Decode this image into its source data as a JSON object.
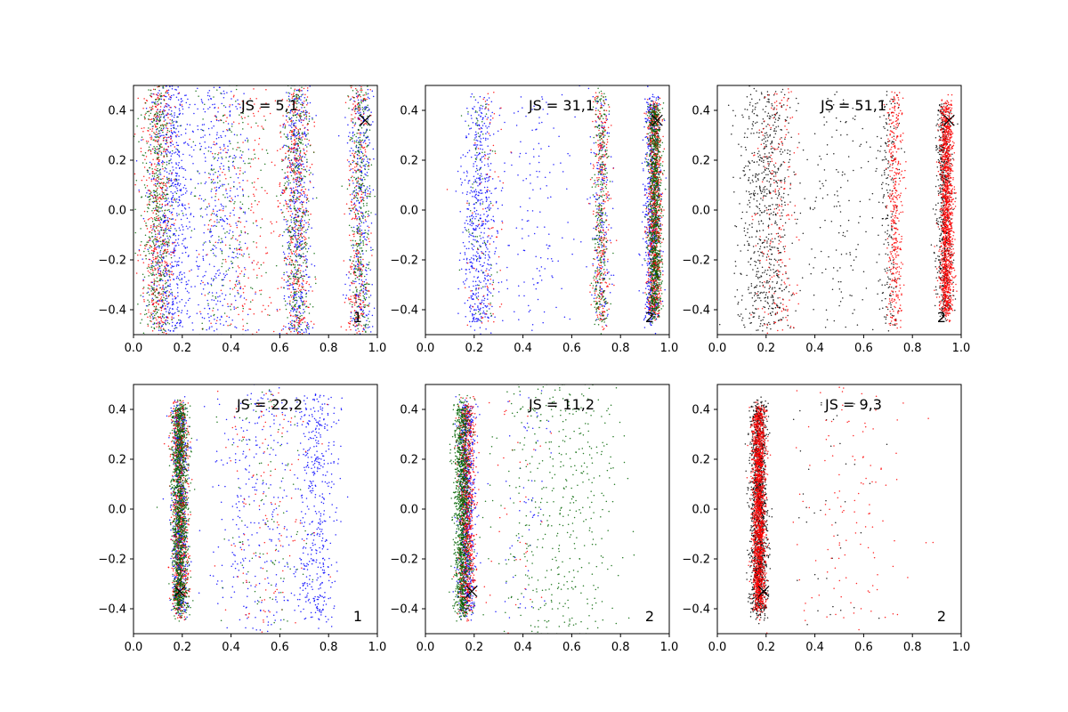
{
  "chart_data": [
    {
      "type": "scatter",
      "title": "JS = 5,1",
      "corner_label": "1",
      "xlim": [
        0,
        1
      ],
      "ylim": [
        -0.5,
        0.5
      ],
      "xticks": [
        "0.0",
        "0.2",
        "0.4",
        "0.6",
        "0.8",
        "1.0"
      ],
      "yticks": [
        "-0.4",
        "-0.2",
        "0.0",
        "0.2",
        "0.4"
      ],
      "marker": {
        "x": 0.95,
        "y": 0.36
      },
      "series": [
        {
          "color": "#0000ff",
          "clusters": [
            {
              "cx": 0.15,
              "cy": 0.0,
              "sx": 0.08,
              "sy": 0.26,
              "n": 700
            },
            {
              "cx": 0.35,
              "cy": 0.0,
              "sx": 0.12,
              "sy": 0.26,
              "n": 400
            },
            {
              "cx": 0.67,
              "cy": 0.0,
              "sx": 0.05,
              "sy": 0.26,
              "n": 500
            },
            {
              "cx": 0.93,
              "cy": 0.0,
              "sx": 0.05,
              "sy": 0.26,
              "n": 350
            }
          ]
        },
        {
          "color": "#ff0000",
          "clusters": [
            {
              "cx": 0.1,
              "cy": 0.0,
              "sx": 0.06,
              "sy": 0.26,
              "n": 500
            },
            {
              "cx": 0.67,
              "cy": 0.0,
              "sx": 0.05,
              "sy": 0.26,
              "n": 400
            },
            {
              "cx": 0.92,
              "cy": 0.0,
              "sx": 0.04,
              "sy": 0.26,
              "n": 300
            },
            {
              "cx": 0.45,
              "cy": 0.0,
              "sx": 0.18,
              "sy": 0.26,
              "n": 250
            }
          ]
        },
        {
          "color": "#006400",
          "clusters": [
            {
              "cx": 0.1,
              "cy": 0.0,
              "sx": 0.06,
              "sy": 0.26,
              "n": 500
            },
            {
              "cx": 0.67,
              "cy": 0.0,
              "sx": 0.05,
              "sy": 0.26,
              "n": 400
            },
            {
              "cx": 0.93,
              "cy": 0.0,
              "sx": 0.04,
              "sy": 0.26,
              "n": 350
            },
            {
              "cx": 0.4,
              "cy": 0.0,
              "sx": 0.15,
              "sy": 0.26,
              "n": 200
            }
          ]
        }
      ]
    },
    {
      "type": "scatter",
      "title": "JS = 31,1",
      "corner_label": "2",
      "xlim": [
        0,
        1
      ],
      "ylim": [
        -0.5,
        0.5
      ],
      "xticks": [
        "0.0",
        "0.2",
        "0.4",
        "0.6",
        "0.8",
        "1.0"
      ],
      "yticks": [
        "-0.4",
        "-0.2",
        "0.0",
        "0.2",
        "0.4"
      ],
      "marker": {
        "x": 0.95,
        "y": 0.36
      },
      "series": [
        {
          "color": "#0000ff",
          "clusters": [
            {
              "cx": 0.22,
              "cy": 0.0,
              "sx": 0.06,
              "sy": 0.24,
              "n": 550
            },
            {
              "cx": 0.72,
              "cy": 0.0,
              "sx": 0.04,
              "sy": 0.24,
              "n": 200
            },
            {
              "cx": 0.93,
              "cy": 0.0,
              "sx": 0.03,
              "sy": 0.24,
              "n": 600
            },
            {
              "cx": 0.45,
              "cy": 0.0,
              "sx": 0.15,
              "sy": 0.25,
              "n": 150
            }
          ]
        },
        {
          "color": "#ff0000",
          "clusters": [
            {
              "cx": 0.72,
              "cy": 0.0,
              "sx": 0.03,
              "sy": 0.24,
              "n": 300
            },
            {
              "cx": 0.94,
              "cy": 0.0,
              "sx": 0.025,
              "sy": 0.22,
              "n": 900
            },
            {
              "cx": 0.25,
              "cy": 0.0,
              "sx": 0.08,
              "sy": 0.25,
              "n": 80
            }
          ]
        },
        {
          "color": "#006400",
          "clusters": [
            {
              "cx": 0.72,
              "cy": 0.0,
              "sx": 0.03,
              "sy": 0.24,
              "n": 300
            },
            {
              "cx": 0.94,
              "cy": 0.0,
              "sx": 0.025,
              "sy": 0.22,
              "n": 1000
            },
            {
              "cx": 0.22,
              "cy": 0.0,
              "sx": 0.05,
              "sy": 0.24,
              "n": 80
            }
          ]
        }
      ]
    },
    {
      "type": "scatter",
      "title": "JS = 51,1",
      "corner_label": "2",
      "xlim": [
        0,
        1
      ],
      "ylim": [
        -0.5,
        0.5
      ],
      "xticks": [
        "0.0",
        "0.2",
        "0.4",
        "0.6",
        "0.8",
        "1.0"
      ],
      "yticks": [
        "-0.4",
        "-0.2",
        "0.0",
        "0.2",
        "0.4"
      ],
      "marker": {
        "x": 0.95,
        "y": 0.36
      },
      "series": [
        {
          "color": "#000000",
          "clusters": [
            {
              "cx": 0.2,
              "cy": 0.0,
              "sx": 0.1,
              "sy": 0.25,
              "n": 700
            },
            {
              "cx": 0.7,
              "cy": 0.0,
              "sx": 0.04,
              "sy": 0.24,
              "n": 200
            },
            {
              "cx": 0.93,
              "cy": 0.0,
              "sx": 0.03,
              "sy": 0.22,
              "n": 600
            },
            {
              "cx": 0.5,
              "cy": 0.0,
              "sx": 0.15,
              "sy": 0.25,
              "n": 150
            }
          ]
        },
        {
          "color": "#ff0000",
          "clusters": [
            {
              "cx": 0.73,
              "cy": 0.0,
              "sx": 0.03,
              "sy": 0.24,
              "n": 400
            },
            {
              "cx": 0.94,
              "cy": 0.0,
              "sx": 0.025,
              "sy": 0.22,
              "n": 1400
            },
            {
              "cx": 0.25,
              "cy": 0.0,
              "sx": 0.08,
              "sy": 0.25,
              "n": 200
            }
          ]
        }
      ]
    },
    {
      "type": "scatter",
      "title": "JS = 22,2",
      "corner_label": "1",
      "xlim": [
        0,
        1
      ],
      "ylim": [
        -0.5,
        0.5
      ],
      "xticks": [
        "0.0",
        "0.2",
        "0.4",
        "0.6",
        "0.8",
        "1.0"
      ],
      "yticks": [
        "-0.4",
        "-0.2",
        "0.0",
        "0.2",
        "0.4"
      ],
      "marker": {
        "x": 0.19,
        "y": -0.33
      },
      "series": [
        {
          "color": "#0000ff",
          "clusters": [
            {
              "cx": 0.19,
              "cy": 0.0,
              "sx": 0.03,
              "sy": 0.22,
              "n": 700
            },
            {
              "cx": 0.75,
              "cy": 0.0,
              "sx": 0.08,
              "sy": 0.24,
              "n": 450
            },
            {
              "cx": 0.5,
              "cy": 0.0,
              "sx": 0.18,
              "sy": 0.25,
              "n": 300
            }
          ]
        },
        {
          "color": "#ff0000",
          "clusters": [
            {
              "cx": 0.19,
              "cy": 0.0,
              "sx": 0.03,
              "sy": 0.22,
              "n": 800
            },
            {
              "cx": 0.55,
              "cy": 0.0,
              "sx": 0.18,
              "sy": 0.25,
              "n": 120
            }
          ]
        },
        {
          "color": "#006400",
          "clusters": [
            {
              "cx": 0.19,
              "cy": 0.0,
              "sx": 0.03,
              "sy": 0.22,
              "n": 1300
            },
            {
              "cx": 0.55,
              "cy": 0.0,
              "sx": 0.18,
              "sy": 0.25,
              "n": 100
            }
          ]
        }
      ]
    },
    {
      "type": "scatter",
      "title": "JS = 11,2",
      "corner_label": "2",
      "xlim": [
        0,
        1
      ],
      "ylim": [
        -0.5,
        0.5
      ],
      "xticks": [
        "0.0",
        "0.2",
        "0.4",
        "0.6",
        "0.8",
        "1.0"
      ],
      "yticks": [
        "-0.4",
        "-0.2",
        "0.0",
        "0.2",
        "0.4"
      ],
      "marker": {
        "x": 0.19,
        "y": -0.33
      },
      "series": [
        {
          "color": "#0000ff",
          "clusters": [
            {
              "cx": 0.17,
              "cy": 0.0,
              "sx": 0.03,
              "sy": 0.22,
              "n": 800
            },
            {
              "cx": 0.4,
              "cy": 0.0,
              "sx": 0.12,
              "sy": 0.25,
              "n": 60
            }
          ]
        },
        {
          "color": "#ff0000",
          "clusters": [
            {
              "cx": 0.17,
              "cy": 0.0,
              "sx": 0.03,
              "sy": 0.22,
              "n": 900
            },
            {
              "cx": 0.4,
              "cy": 0.0,
              "sx": 0.12,
              "sy": 0.25,
              "n": 40
            }
          ]
        },
        {
          "color": "#006400",
          "clusters": [
            {
              "cx": 0.15,
              "cy": 0.0,
              "sx": 0.03,
              "sy": 0.22,
              "n": 1200
            },
            {
              "cx": 0.55,
              "cy": 0.0,
              "sx": 0.22,
              "sy": 0.26,
              "n": 450
            }
          ]
        }
      ]
    },
    {
      "type": "scatter",
      "title": "JS = 9,3",
      "corner_label": "2",
      "xlim": [
        0,
        1
      ],
      "ylim": [
        -0.5,
        0.5
      ],
      "xticks": [
        "0.0",
        "0.2",
        "0.4",
        "0.6",
        "0.8",
        "1.0"
      ],
      "yticks": [
        "-0.4",
        "-0.2",
        "0.0",
        "0.2",
        "0.4"
      ],
      "marker": {
        "x": 0.19,
        "y": -0.33
      },
      "series": [
        {
          "color": "#000000",
          "clusters": [
            {
              "cx": 0.17,
              "cy": 0.0,
              "sx": 0.03,
              "sy": 0.22,
              "n": 1500
            },
            {
              "cx": 0.45,
              "cy": 0.0,
              "sx": 0.18,
              "sy": 0.25,
              "n": 40
            }
          ]
        },
        {
          "color": "#ff0000",
          "clusters": [
            {
              "cx": 0.17,
              "cy": 0.0,
              "sx": 0.025,
              "sy": 0.21,
              "n": 1700
            },
            {
              "cx": 0.55,
              "cy": 0.0,
              "sx": 0.22,
              "sy": 0.26,
              "n": 120
            }
          ]
        }
      ]
    }
  ]
}
